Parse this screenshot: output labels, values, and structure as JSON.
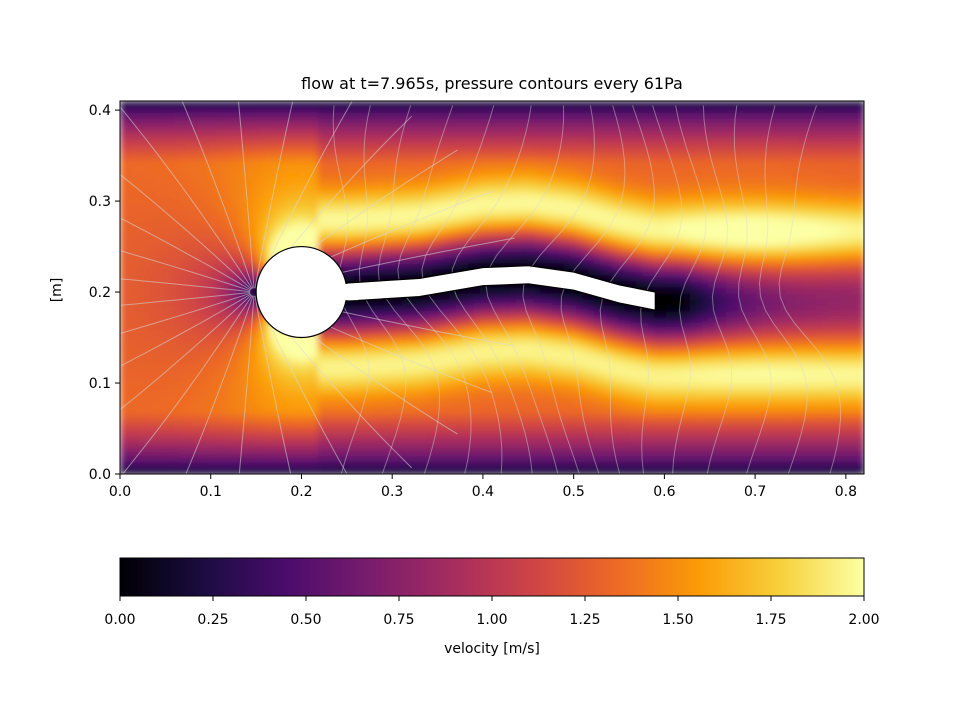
{
  "chart_data": {
    "type": "heatmap",
    "title": "flow at t=7.965s, pressure contours every 61Pa",
    "xlabel": "",
    "ylabel": "[m]",
    "xlim": [
      0.0,
      0.82
    ],
    "ylim": [
      0.0,
      0.41
    ],
    "xticks": [
      "0.0",
      "0.1",
      "0.2",
      "0.3",
      "0.4",
      "0.5",
      "0.6",
      "0.7",
      "0.8"
    ],
    "yticks": [
      "0.0",
      "0.1",
      "0.2",
      "0.3",
      "0.4"
    ],
    "field": "velocity magnitude",
    "colormap": "inferno",
    "contours": "pressure",
    "contour_interval_pa": 61,
    "obstacle": {
      "cylinder": {
        "center": [
          0.2,
          0.2
        ],
        "radius": 0.05
      },
      "flag": {
        "attached_at": [
          0.25,
          0.2
        ],
        "tip": [
          0.59,
          0.19
        ],
        "thickness": 0.02,
        "centerline": [
          [
            0.25,
            0.2
          ],
          [
            0.33,
            0.205
          ],
          [
            0.4,
            0.217
          ],
          [
            0.45,
            0.219
          ],
          [
            0.5,
            0.212
          ],
          [
            0.55,
            0.198
          ],
          [
            0.59,
            0.19
          ]
        ]
      }
    },
    "colorbar": {
      "label": "velocity [m/s]",
      "range": [
        0.0,
        2.0
      ],
      "ticks": [
        "0.00",
        "0.25",
        "0.50",
        "0.75",
        "1.00",
        "1.25",
        "1.50",
        "1.75",
        "2.00"
      ],
      "orientation": "horizontal",
      "placement": "bottom"
    }
  },
  "colors": {
    "inferno": [
      "#000004",
      "#1b0c41",
      "#4a0c6b",
      "#781c6d",
      "#a52c60",
      "#cf4446",
      "#ed6925",
      "#fb9b06",
      "#f7d13d",
      "#fcffa4"
    ],
    "contour": "#d8d8d8",
    "obstacle_fill": "#ffffff",
    "obstacle_edge": "#000000"
  }
}
